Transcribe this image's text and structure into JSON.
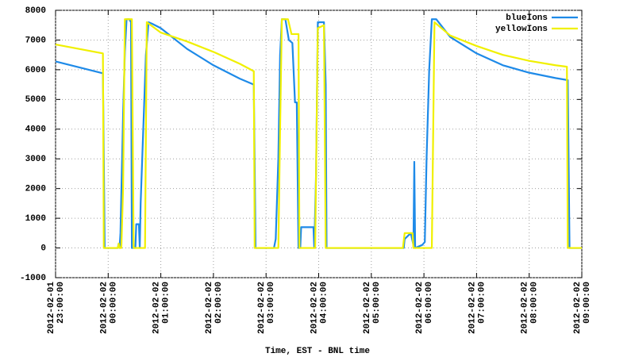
{
  "chart_data": {
    "type": "line",
    "xlabel": "Time, EST - BNL time",
    "legend": "upper right",
    "grid": true,
    "xlim": [
      "2012-02-01T23:00",
      "2012-02-02T09:00"
    ],
    "xticks": [
      {
        "value": "2012-02-01T23:00",
        "label": "2012-02-01\n23:00:00"
      },
      {
        "value": "2012-02-02T00:00",
        "label": "2012-02-02\n00:00:00"
      },
      {
        "value": "2012-02-02T01:00",
        "label": "2012-02-02\n01:00:00"
      },
      {
        "value": "2012-02-02T02:00",
        "label": "2012-02-02\n02:00:00"
      },
      {
        "value": "2012-02-02T03:00",
        "label": "2012-02-02\n03:00:00"
      },
      {
        "value": "2012-02-02T04:00",
        "label": "2012-02-02\n04:00:00"
      },
      {
        "value": "2012-02-02T05:00",
        "label": "2012-02-02\n05:00:00"
      },
      {
        "value": "2012-02-02T06:00",
        "label": "2012-02-02\n06:00:00"
      },
      {
        "value": "2012-02-02T07:00",
        "label": "2012-02-02\n07:00:00"
      },
      {
        "value": "2012-02-02T08:00",
        "label": "2012-02-02\n08:00:00"
      },
      {
        "value": "2012-02-02T09:00",
        "label": "2012-02-02\n09:00:00"
      }
    ],
    "ylim": [
      -1000,
      8000
    ],
    "yticks": [
      -1000,
      0,
      1000,
      2000,
      3000,
      4000,
      5000,
      6000,
      7000,
      8000
    ],
    "series": [
      {
        "name": "blueIons",
        "color": "#1e8ae8",
        "x": [
          "2012-02-01T23:00",
          "2012-02-01T23:54",
          "2012-02-01T23:55",
          "2012-02-01T23:56",
          "2012-02-02T00:11",
          "2012-02-02T00:12",
          "2012-02-02T00:13",
          "2012-02-02T00:14",
          "2012-02-02T00:17",
          "2012-02-02T00:19",
          "2012-02-02T00:21",
          "2012-02-02T00:24",
          "2012-02-02T00:26",
          "2012-02-02T00:27",
          "2012-02-02T00:31",
          "2012-02-02T00:32",
          "2012-02-02T00:35",
          "2012-02-02T00:36",
          "2012-02-02T00:37",
          "2012-02-02T00:40",
          "2012-02-02T00:43",
          "2012-02-02T00:46",
          "2012-02-02T00:50",
          "2012-02-02T01:00",
          "2012-02-02T01:30",
          "2012-02-02T02:00",
          "2012-02-02T02:30",
          "2012-02-02T02:46",
          "2012-02-02T02:47",
          "2012-02-02T02:48",
          "2012-02-02T03:09",
          "2012-02-02T03:11",
          "2012-02-02T03:14",
          "2012-02-02T03:16",
          "2012-02-02T03:18",
          "2012-02-02T03:22",
          "2012-02-02T03:26",
          "2012-02-02T03:30",
          "2012-02-02T03:33",
          "2012-02-02T03:35",
          "2012-02-02T03:37",
          "2012-02-02T03:39",
          "2012-02-02T03:40",
          "2012-02-02T03:54",
          "2012-02-02T03:55",
          "2012-02-02T03:57",
          "2012-02-02T03:59",
          "2012-02-02T04:06",
          "2012-02-02T04:08",
          "2012-02-02T04:09",
          "2012-02-02T05:37",
          "2012-02-02T05:38",
          "2012-02-02T05:45",
          "2012-02-02T05:48",
          "2012-02-02T05:49",
          "2012-02-02T05:50",
          "2012-02-02T05:58",
          "2012-02-02T06:01",
          "2012-02-02T06:03",
          "2012-02-02T06:06",
          "2012-02-02T06:09",
          "2012-02-02T06:14",
          "2012-02-02T06:30",
          "2012-02-02T07:00",
          "2012-02-02T07:30",
          "2012-02-02T08:00",
          "2012-02-02T08:30",
          "2012-02-02T08:44",
          "2012-02-02T08:45",
          "2012-02-02T08:46",
          "2012-02-02T09:00"
        ],
        "values": [
          6280,
          5880,
          3000,
          0,
          0,
          150,
          0,
          500,
          4500,
          6600,
          7700,
          7700,
          7600,
          0,
          0,
          800,
          800,
          0,
          1500,
          4000,
          6500,
          7600,
          7550,
          7400,
          6700,
          6150,
          5700,
          5500,
          2800,
          0,
          0,
          300,
          3000,
          6500,
          7700,
          7700,
          7000,
          6900,
          4900,
          4900,
          0,
          0,
          700,
          700,
          0,
          2500,
          7600,
          7600,
          5500,
          0,
          0,
          300,
          500,
          100,
          2900,
          0,
          100,
          200,
          3000,
          6000,
          7700,
          7700,
          7100,
          6550,
          6150,
          5900,
          5720,
          5650,
          2800,
          0,
          0
        ]
      },
      {
        "name": "yellowIons",
        "color": "#f0f000",
        "x": [
          "2012-02-01T23:00",
          "2012-02-01T23:54",
          "2012-02-01T23:55",
          "2012-02-02T00:11",
          "2012-02-02T00:12",
          "2012-02-02T00:13",
          "2012-02-02T00:15",
          "2012-02-02T00:17",
          "2012-02-02T00:19",
          "2012-02-02T00:27",
          "2012-02-02T00:29",
          "2012-02-02T00:42",
          "2012-02-02T00:44",
          "2012-02-02T01:00",
          "2012-02-02T01:30",
          "2012-02-02T02:00",
          "2012-02-02T02:30",
          "2012-02-02T02:46",
          "2012-02-02T02:47",
          "2012-02-02T03:14",
          "2012-02-02T03:16",
          "2012-02-02T03:18",
          "2012-02-02T03:25",
          "2012-02-02T03:29",
          "2012-02-02T03:37",
          "2012-02-02T03:38",
          "2012-02-02T03:56",
          "2012-02-02T03:59",
          "2012-02-02T04:06",
          "2012-02-02T04:08",
          "2012-02-02T05:36",
          "2012-02-02T05:38",
          "2012-02-02T05:47",
          "2012-02-02T05:48",
          "2012-02-02T06:09",
          "2012-02-02T06:12",
          "2012-02-02T06:30",
          "2012-02-02T07:00",
          "2012-02-02T07:30",
          "2012-02-02T08:00",
          "2012-02-02T08:30",
          "2012-02-02T08:43",
          "2012-02-02T08:44",
          "2012-02-02T09:00"
        ],
        "values": [
          6850,
          6550,
          0,
          0,
          150,
          0,
          0,
          2000,
          7700,
          7700,
          0,
          0,
          7600,
          7250,
          6950,
          6600,
          6200,
          5950,
          0,
          0,
          4000,
          7700,
          7700,
          7200,
          7200,
          0,
          0,
          7400,
          7500,
          0,
          0,
          500,
          500,
          0,
          0,
          7600,
          7150,
          6800,
          6500,
          6300,
          6150,
          6100,
          0,
          0
        ]
      }
    ]
  }
}
